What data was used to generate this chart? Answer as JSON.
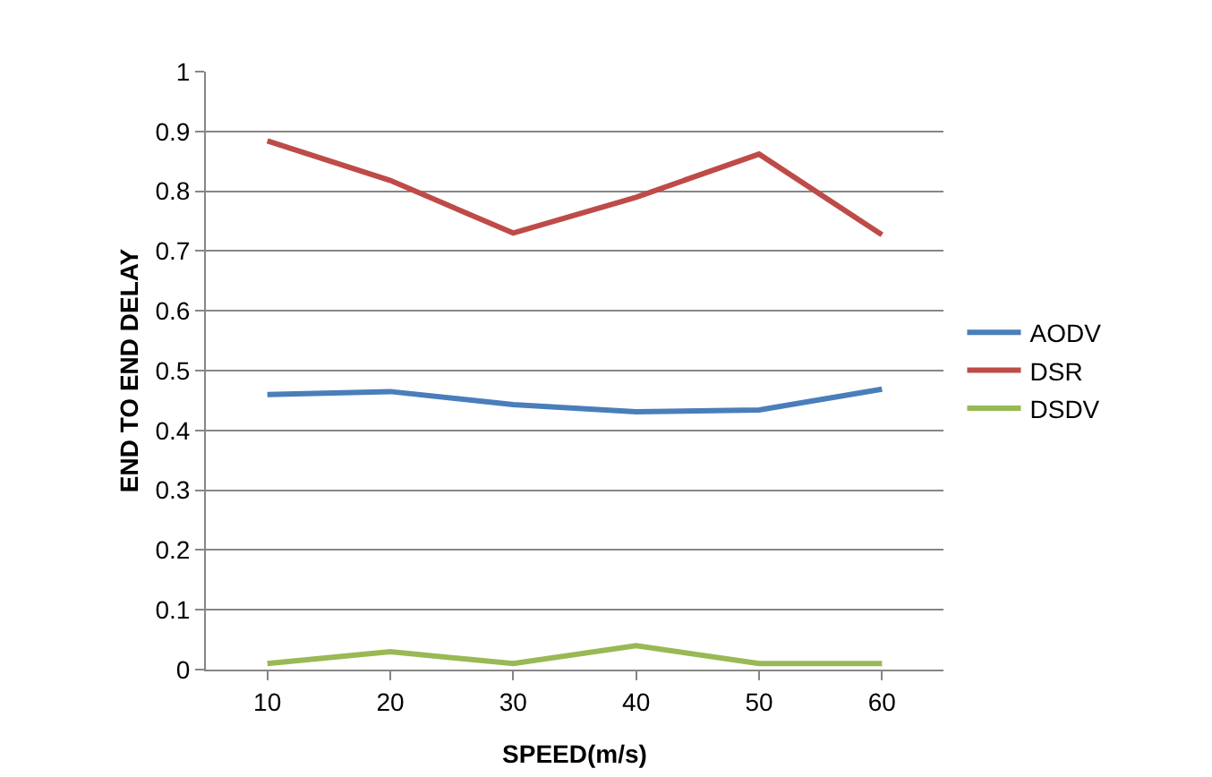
{
  "chart_data": {
    "type": "line",
    "xlabel": "SPEED(m/s)",
    "ylabel": "END TO END DELAY",
    "categories": [
      "10",
      "20",
      "30",
      "40",
      "50",
      "60"
    ],
    "series": [
      {
        "name": "AODV",
        "color": "#4a7ebb",
        "values": [
          0.46,
          0.465,
          0.443,
          0.431,
          0.434,
          0.469
        ]
      },
      {
        "name": "DSR",
        "color": "#be4b48",
        "values": [
          0.884,
          0.818,
          0.73,
          0.79,
          0.862,
          0.727
        ]
      },
      {
        "name": "DSDV",
        "color": "#98b954",
        "values": [
          0.01,
          0.03,
          0.01,
          0.04,
          0.01,
          0.01
        ]
      }
    ],
    "ylim": [
      0,
      1
    ],
    "yticks": [
      0,
      0.1,
      0.2,
      0.3,
      0.4,
      0.5,
      0.6,
      0.7,
      0.8,
      0.9,
      1
    ],
    "grid": "y",
    "legend": "right",
    "marker": "none",
    "line_style": "solid"
  }
}
